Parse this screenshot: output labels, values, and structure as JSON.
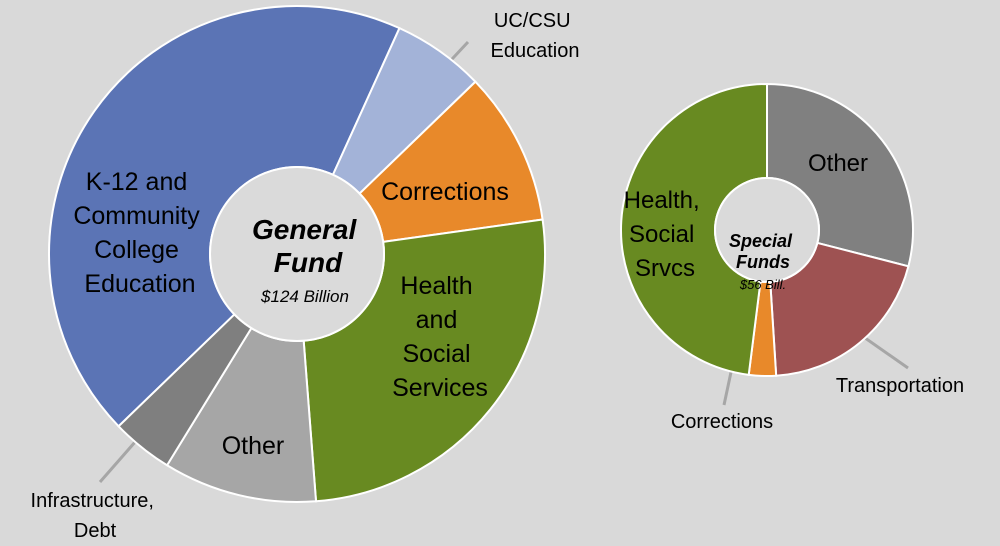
{
  "chart_data": [
    {
      "type": "donut",
      "title": "General\nFund",
      "subtitle": "$124 Billion",
      "categories": [
        "K-12 and\nCommunity\nCollege\nEducation",
        "UC/CSU\nEducation",
        "Corrections",
        "Health\nand\nSocial\nServices",
        "Other",
        "Infrastructure,\nDebt"
      ],
      "values": [
        44,
        6,
        10,
        26,
        10,
        4
      ],
      "colors": [
        "#5b74b5",
        "#a3b3d8",
        "#e8892a",
        "#688a21",
        "#a6a6a6",
        "#7f7f7f"
      ]
    },
    {
      "type": "donut",
      "title": "Special\nFunds",
      "subtitle": "$56 Bill.",
      "categories": [
        "Other",
        "Transportation",
        "Corrections",
        "Health,\nSocial\nSrvcs"
      ],
      "values": [
        29,
        20,
        3,
        48
      ],
      "colors": [
        "#808080",
        "#9e5252",
        "#e8892a",
        "#688a21"
      ]
    }
  ]
}
